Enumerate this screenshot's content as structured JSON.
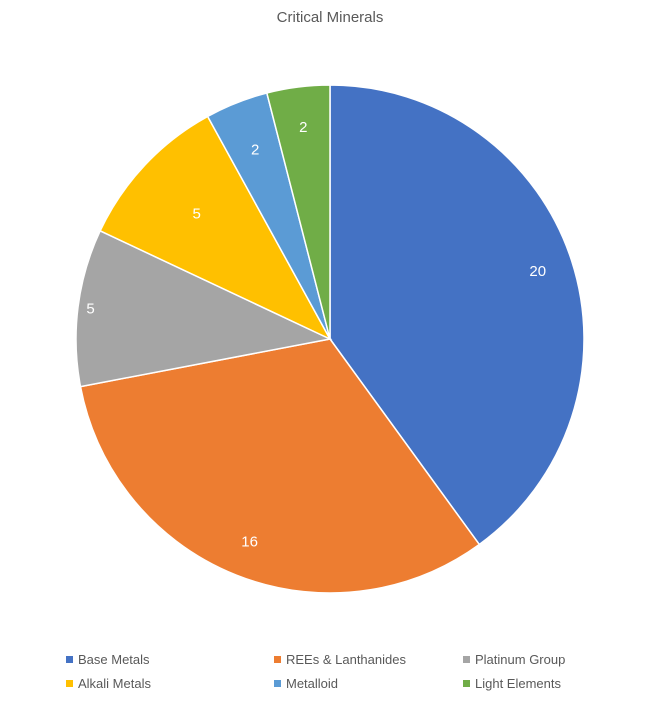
{
  "chart_data": {
    "type": "pie",
    "title": "Critical Minerals",
    "categories": [
      "Base Metals",
      "REEs & Lanthanides",
      "Platinum Group",
      "Alkali Metals",
      "Metalloid",
      "Light Elements"
    ],
    "values": [
      20,
      16,
      5,
      5,
      2,
      2
    ],
    "colors": [
      "#4472C4",
      "#ED7D31",
      "#A5A5A5",
      "#FFC000",
      "#5B9BD5",
      "#70AD47"
    ],
    "label_color": "#ffffff",
    "data_labels": true,
    "legend_position": "bottom",
    "start": "12 o'clock, clockwise"
  }
}
